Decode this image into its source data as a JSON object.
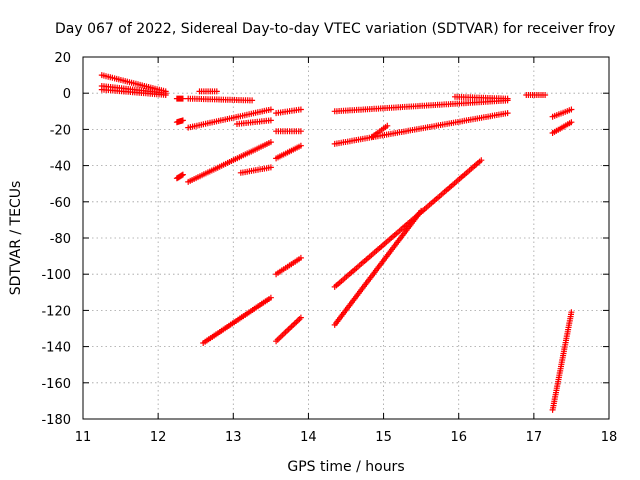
{
  "chart_data": {
    "type": "scatter",
    "title": "Day 067 of 2022, Sidereal Day-to-day VTEC variation (SDTVAR) for receiver froy",
    "xlabel": "GPS time / hours",
    "ylabel": "SDTVAR / TECUs",
    "xlim": [
      11,
      18
    ],
    "ylim": [
      -180,
      20
    ],
    "xticks": [
      "11",
      "12",
      "13",
      "14",
      "15",
      "16",
      "17",
      "18"
    ],
    "yticks": [
      "20",
      "0",
      "-20",
      "-40",
      "-60",
      "-80",
      "-100",
      "-120",
      "-140",
      "-160",
      "-180"
    ],
    "grid": true,
    "marker": "+",
    "color": "#ff0000",
    "series": [
      {
        "x": [
          11.25,
          12.1
        ],
        "y": [
          10,
          1
        ]
      },
      {
        "x": [
          11.25,
          12.1
        ],
        "y": [
          4,
          0
        ]
      },
      {
        "x": [
          11.25,
          12.1
        ],
        "y": [
          2,
          -1
        ]
      },
      {
        "x": [
          12.55,
          12.78
        ],
        "y": [
          1,
          1
        ]
      },
      {
        "x": [
          12.25,
          12.33
        ],
        "y": [
          -3,
          -3
        ]
      },
      {
        "x": [
          12.4,
          13.25
        ],
        "y": [
          -3,
          -4
        ]
      },
      {
        "x": [
          12.25,
          12.33
        ],
        "y": [
          -16,
          -15
        ]
      },
      {
        "x": [
          12.4,
          13.5
        ],
        "y": [
          -19,
          -9
        ]
      },
      {
        "x": [
          13.05,
          13.5
        ],
        "y": [
          -17,
          -15
        ]
      },
      {
        "x": [
          13.57,
          13.9
        ],
        "y": [
          -11,
          -9
        ]
      },
      {
        "x": [
          13.57,
          13.9
        ],
        "y": [
          -21,
          -21
        ]
      },
      {
        "x": [
          12.25,
          12.33
        ],
        "y": [
          -47,
          -45
        ]
      },
      {
        "x": [
          12.4,
          13.5
        ],
        "y": [
          -49,
          -27
        ]
      },
      {
        "x": [
          13.1,
          13.5
        ],
        "y": [
          -44,
          -41
        ]
      },
      {
        "x": [
          13.57,
          13.9
        ],
        "y": [
          -36,
          -29
        ]
      },
      {
        "x": [
          14.35,
          16.65
        ],
        "y": [
          -10,
          -4
        ]
      },
      {
        "x": [
          14.35,
          16.65
        ],
        "y": [
          -28,
          -11
        ]
      },
      {
        "x": [
          14.85,
          15.05
        ],
        "y": [
          -24,
          -18
        ]
      },
      {
        "x": [
          15.95,
          16.65
        ],
        "y": [
          -2,
          -3
        ]
      },
      {
        "x": [
          16.9,
          17.15
        ],
        "y": [
          -1,
          -1
        ]
      },
      {
        "x": [
          17.25,
          17.5
        ],
        "y": [
          -13,
          -9
        ]
      },
      {
        "x": [
          17.25,
          17.5
        ],
        "y": [
          -22,
          -16
        ]
      },
      {
        "x": [
          14.35,
          16.3
        ],
        "y": [
          -107,
          -37
        ]
      },
      {
        "x": [
          14.35,
          15.5
        ],
        "y": [
          -128,
          -65
        ]
      },
      {
        "x": [
          12.6,
          13.5
        ],
        "y": [
          -138,
          -113
        ]
      },
      {
        "x": [
          13.57,
          13.9
        ],
        "y": [
          -137,
          -124
        ]
      },
      {
        "x": [
          13.57,
          13.9
        ],
        "y": [
          -100,
          -91
        ]
      },
      {
        "x": [
          17.25,
          17.5
        ],
        "y": [
          -175,
          -121
        ]
      }
    ]
  }
}
